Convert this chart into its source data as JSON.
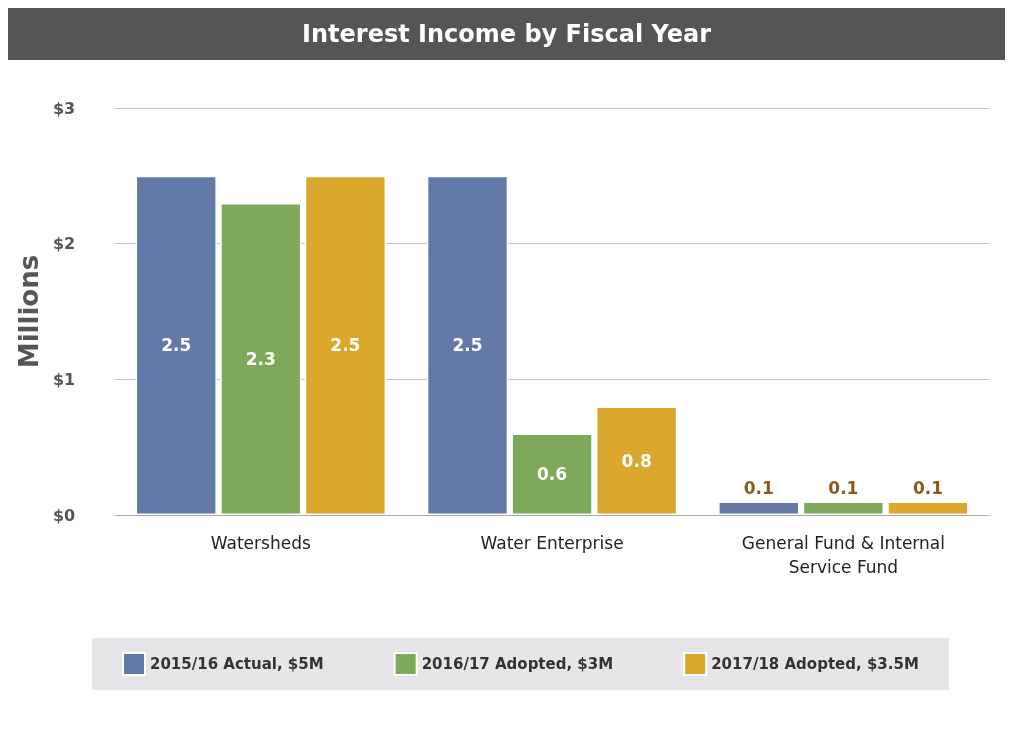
{
  "chart_data": {
    "type": "bar",
    "title": "Interest Income by Fiscal Year",
    "ylabel": "Millions",
    "categories": [
      "Watersheds",
      "Water Enterprise",
      "General Fund & Internal\nService Fund"
    ],
    "series": [
      {
        "name": "2015/16 Actual, $5M",
        "color": "#6279a8",
        "values": [
          2.5,
          2.5,
          0.1
        ]
      },
      {
        "name": "2016/17 Adopted, $3M",
        "color": "#7ea95a",
        "values": [
          2.3,
          0.6,
          0.1
        ]
      },
      {
        "name": "2017/18 Adopted, $3.5M",
        "color": "#dba72c",
        "values": [
          2.5,
          0.8,
          0.1
        ]
      }
    ],
    "ylim": [
      0,
      3
    ],
    "yticks": [
      {
        "value": 0,
        "label": "$0"
      },
      {
        "value": 1,
        "label": "$1"
      },
      {
        "value": 2,
        "label": "$2"
      },
      {
        "value": 3,
        "label": "$3"
      }
    ],
    "grid": "y",
    "legend": "bottom",
    "data_labels": true
  }
}
